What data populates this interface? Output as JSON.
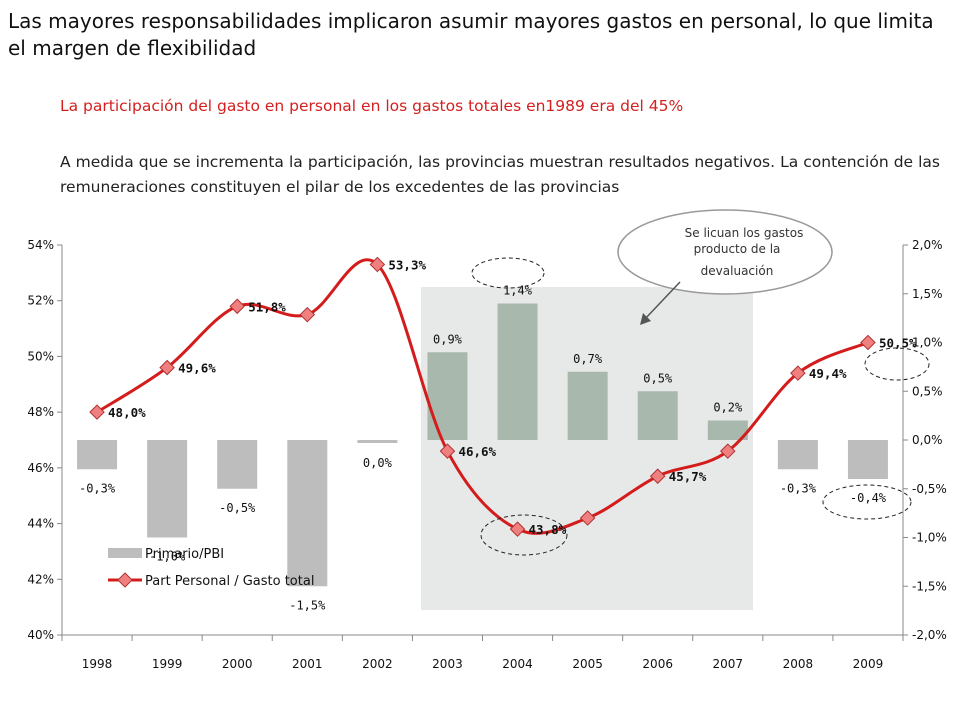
{
  "header": {
    "title": "Las mayores responsabilidades implicaron asumir mayores gastos en personal, lo que limita el margen de flexibilidad",
    "highlight": "La participación del gasto en personal en los gastos totales en1989 era del 45%",
    "body": "A medida que se incrementa la participación, las provincias muestran resultados negativos. La contención de las remuneraciones constituyen el pilar de los excedentes de las provincias"
  },
  "callout": {
    "line1": "Se licuan los gastos",
    "line2": "producto de la",
    "line3": "devaluación"
  },
  "colors": {
    "bar": "#bdbdbd",
    "bar_highlight": "#a9b8ad",
    "line": "#d41c1c",
    "marker": "#f08080",
    "shade": "#e7e9e8"
  },
  "chart_data": {
    "type": "bar+line",
    "categories": [
      "1998",
      "1999",
      "2000",
      "2001",
      "2002",
      "2003",
      "2004",
      "2005",
      "2006",
      "2007",
      "2008",
      "2009"
    ],
    "series": [
      {
        "name": "Primario/PBI",
        "axis": "right",
        "type": "bar",
        "values": [
          -0.3,
          -1.0,
          -0.5,
          -1.5,
          0.0,
          0.9,
          1.4,
          0.7,
          0.5,
          0.2,
          -0.3,
          -0.4
        ],
        "labels": [
          "-0,3%",
          "-1,0%",
          "-0,5%",
          "-1,5%",
          "0,0%",
          "0,9%",
          "1,4%",
          "0,7%",
          "0,5%",
          "0,2%",
          "-0,3%",
          "-0,4%"
        ]
      },
      {
        "name": "Part Personal / Gasto total",
        "axis": "left",
        "type": "line",
        "values": [
          48.0,
          49.6,
          51.8,
          51.5,
          53.3,
          46.6,
          43.8,
          44.2,
          45.7,
          46.6,
          49.4,
          50.5
        ],
        "labels": [
          "48,0%",
          "49,6%",
          "51,8%",
          "",
          "53,3%",
          "46,6%",
          "43,8%",
          "",
          "45,7%",
          "",
          "49,4%",
          "50,5%"
        ]
      }
    ],
    "y_left": {
      "min": 40,
      "max": 54,
      "ticks": [
        "40%",
        "42%",
        "44%",
        "46%",
        "48%",
        "50%",
        "52%",
        "54%"
      ]
    },
    "y_right": {
      "min": -2.0,
      "max": 2.0,
      "ticks": [
        "-2,0%",
        "-1,5%",
        "-1,0%",
        "-0,5%",
        "0,0%",
        "0,5%",
        "1,0%",
        "1,5%",
        "2,0%"
      ]
    },
    "grid": false,
    "legend": "bottom-left"
  }
}
